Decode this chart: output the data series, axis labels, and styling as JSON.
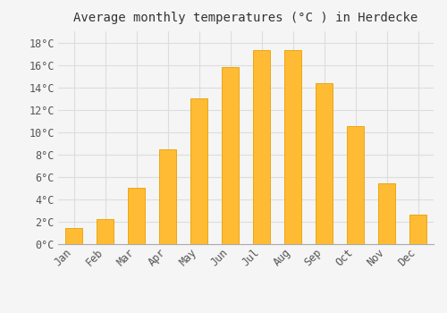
{
  "title": "Average monthly temperatures (°C ) in Herdecke",
  "months": [
    "Jan",
    "Feb",
    "Mar",
    "Apr",
    "May",
    "Jun",
    "Jul",
    "Aug",
    "Sep",
    "Oct",
    "Nov",
    "Dec"
  ],
  "values": [
    1.4,
    2.2,
    5.0,
    8.5,
    13.0,
    15.8,
    17.3,
    17.3,
    14.4,
    10.5,
    5.4,
    2.6
  ],
  "bar_color": "#FFBB33",
  "bar_edge_color": "#E8A000",
  "background_color": "#F5F5F5",
  "plot_bg_color": "#F5F5F5",
  "grid_color": "#DDDDDD",
  "ylim": [
    0,
    19
  ],
  "yticks": [
    0,
    2,
    4,
    6,
    8,
    10,
    12,
    14,
    16,
    18
  ],
  "ytick_labels": [
    "0°C",
    "2°C",
    "4°C",
    "6°C",
    "8°C",
    "10°C",
    "12°C",
    "14°C",
    "16°C",
    "18°C"
  ],
  "title_fontsize": 10,
  "tick_fontsize": 8.5,
  "font_family": "monospace",
  "bar_width": 0.55
}
